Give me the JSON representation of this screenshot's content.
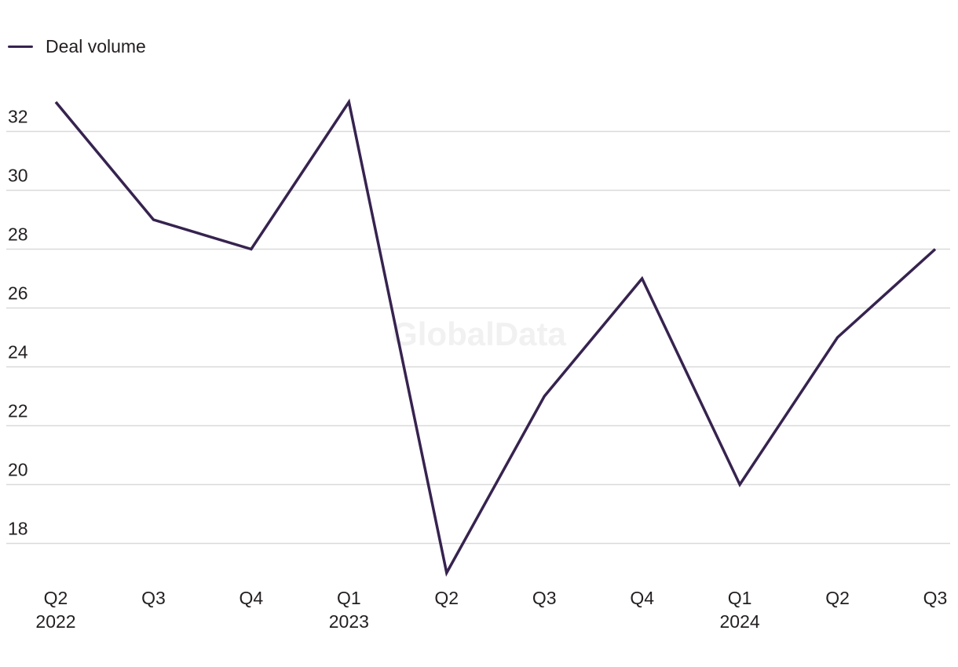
{
  "legend": {
    "label": "Deal volume"
  },
  "watermark": "GlobalData",
  "colors": {
    "series": "#36234f",
    "grid": "#d9d9d9"
  },
  "chart_data": {
    "type": "line",
    "categories": [
      [
        "Q2",
        "2022"
      ],
      [
        "Q3",
        ""
      ],
      [
        "Q4",
        ""
      ],
      [
        "Q1",
        "2023"
      ],
      [
        "Q2",
        ""
      ],
      [
        "Q3",
        ""
      ],
      [
        "Q4",
        ""
      ],
      [
        "Q1",
        "2024"
      ],
      [
        "Q2",
        ""
      ],
      [
        "Q3",
        ""
      ]
    ],
    "series": [
      {
        "name": "Deal volume",
        "values": [
          33,
          29,
          28,
          33,
          17,
          23,
          27,
          20,
          25,
          28
        ]
      }
    ],
    "yticks": [
      18,
      20,
      22,
      24,
      26,
      28,
      30,
      32
    ],
    "ylim": [
      17,
      33
    ],
    "grid": true,
    "legend_position": "top-left",
    "title": "",
    "xlabel": "",
    "ylabel": ""
  }
}
